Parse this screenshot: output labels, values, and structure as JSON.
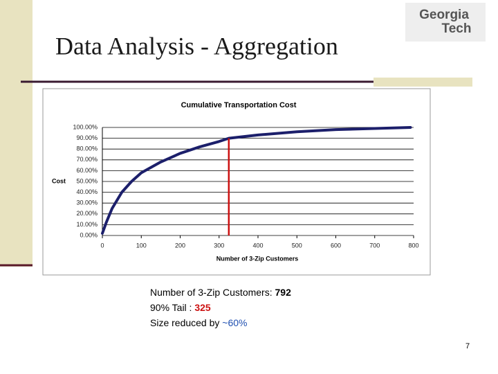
{
  "slide": {
    "title": "Data Analysis - Aggregation",
    "logo": [
      "Georgia",
      "Tech"
    ],
    "page_number": "7",
    "notes": [
      {
        "label": "Number of 3-Zip Customers:",
        "value": "792"
      },
      {
        "label": "90% Tail :",
        "value": "325"
      },
      {
        "label": "Size reduced by",
        "value": "~60%"
      }
    ]
  },
  "chart_data": {
    "type": "line",
    "title": "Cumulative Transportation Cost",
    "x_label": "Number of 3-Zip Customers",
    "y_label": "Cost",
    "x": [
      0,
      10,
      25,
      50,
      75,
      100,
      150,
      200,
      250,
      300,
      325,
      400,
      500,
      600,
      700,
      792
    ],
    "series": [
      {
        "color": "#1c1f6b",
        "values": [
          2,
          12,
          25,
          40,
          50,
          58,
          68,
          76,
          82,
          87,
          90,
          93,
          96,
          98,
          99,
          100
        ]
      }
    ],
    "reference_line": {
      "x": 325,
      "y": 90,
      "color": "#cc1111"
    },
    "xlim": [
      0,
      800
    ],
    "xticks": [
      0,
      100,
      200,
      300,
      400,
      500,
      600,
      700,
      800
    ],
    "ylim": [
      0,
      100
    ],
    "yticks": [
      {
        "value": 0,
        "label": "0.00%"
      },
      {
        "value": 10,
        "label": "10.00%"
      },
      {
        "value": 20,
        "label": "20.00%"
      },
      {
        "value": 30,
        "label": "30.00%"
      },
      {
        "value": 40,
        "label": "40.00%"
      },
      {
        "value": 50,
        "label": "50.00%"
      },
      {
        "value": 60,
        "label": "60.00%"
      },
      {
        "value": 70,
        "label": "70.00%"
      },
      {
        "value": 80,
        "label": "80.00%"
      },
      {
        "value": 90,
        "label": "90.00%"
      },
      {
        "value": 100,
        "label": "100.00%"
      }
    ],
    "grid": true
  }
}
